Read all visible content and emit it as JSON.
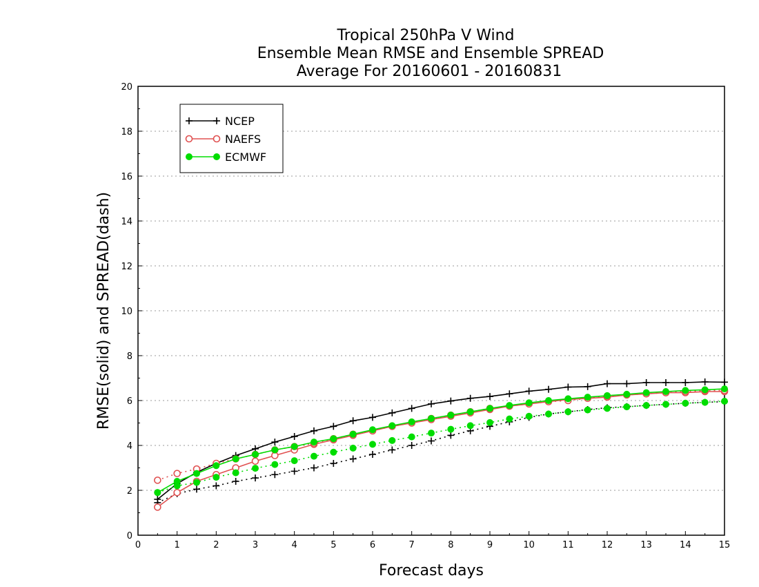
{
  "chart_data": {
    "type": "line",
    "title_lines": [
      "Tropical 250hPa V Wind",
      "Ensemble Mean RMSE and Ensemble SPREAD",
      "Average For 20160601 - 20160831"
    ],
    "xlabel": "Forecast days",
    "ylabel": "RMSE(solid) and SPREAD(dash)",
    "xlim": [
      0,
      15
    ],
    "ylim": [
      0,
      20
    ],
    "xticks": [
      "0",
      "1",
      "2",
      "3",
      "4",
      "5",
      "6",
      "7",
      "8",
      "9",
      "10",
      "11",
      "12",
      "13",
      "14",
      "15"
    ],
    "yticks": [
      "0",
      "2",
      "4",
      "6",
      "8",
      "10",
      "12",
      "14",
      "16",
      "18",
      "20"
    ],
    "grid": true,
    "legend_position": "top-left",
    "x": [
      0.5,
      1.0,
      1.5,
      2.0,
      2.5,
      3.0,
      3.5,
      4.0,
      4.5,
      5.0,
      5.5,
      6.0,
      6.5,
      7.0,
      7.5,
      8.0,
      8.5,
      9.0,
      9.5,
      10.0,
      10.5,
      11.0,
      11.5,
      12.0,
      12.5,
      13.0,
      13.5,
      14.0,
      14.5,
      15.0
    ],
    "series": [
      {
        "name": "NCEP",
        "color": "#000000",
        "marker": "plus",
        "rmse": [
          1.6,
          2.3,
          2.8,
          3.2,
          3.55,
          3.85,
          4.15,
          4.4,
          4.65,
          4.85,
          5.1,
          5.25,
          5.45,
          5.65,
          5.85,
          5.98,
          6.1,
          6.18,
          6.3,
          6.42,
          6.5,
          6.6,
          6.62,
          6.75,
          6.75,
          6.8,
          6.8,
          6.8,
          6.83,
          6.82
        ],
        "spread": [
          1.45,
          1.85,
          2.05,
          2.2,
          2.4,
          2.55,
          2.7,
          2.85,
          3.0,
          3.2,
          3.4,
          3.6,
          3.8,
          4.0,
          4.2,
          4.45,
          4.65,
          4.85,
          5.05,
          5.25,
          5.4,
          5.5,
          5.6,
          5.68,
          5.73,
          5.78,
          5.83,
          5.88,
          5.92,
          5.95
        ]
      },
      {
        "name": "NAEFS",
        "color": "#e05050",
        "marker": "open-circle",
        "rmse": [
          1.25,
          1.9,
          2.4,
          2.7,
          3.0,
          3.3,
          3.55,
          3.8,
          4.05,
          4.25,
          4.45,
          4.65,
          4.85,
          5.0,
          5.15,
          5.3,
          5.45,
          5.6,
          5.75,
          5.85,
          5.95,
          6.05,
          6.1,
          6.15,
          6.25,
          6.3,
          6.35,
          6.35,
          6.4,
          6.4
        ],
        "spread": [
          2.45,
          2.75,
          2.95,
          3.2,
          3.4,
          3.6,
          3.8,
          3.95,
          4.1,
          4.3,
          4.5,
          4.65,
          4.85,
          5.0,
          5.2,
          5.35,
          5.5,
          5.65,
          5.75,
          5.85,
          5.95,
          6.0,
          6.1,
          6.2,
          6.25,
          6.3,
          6.35,
          6.4,
          6.45,
          6.45
        ]
      },
      {
        "name": "ECMWF",
        "color": "#00dd00",
        "marker": "filled-circle",
        "rmse": [
          1.9,
          2.4,
          2.75,
          3.1,
          3.4,
          3.6,
          3.8,
          3.95,
          4.15,
          4.3,
          4.5,
          4.7,
          4.88,
          5.05,
          5.2,
          5.35,
          5.5,
          5.65,
          5.78,
          5.9,
          6.0,
          6.08,
          6.15,
          6.22,
          6.28,
          6.35,
          6.4,
          6.45,
          6.48,
          6.52
        ],
        "spread": [
          1.9,
          2.2,
          2.35,
          2.58,
          2.78,
          2.98,
          3.15,
          3.32,
          3.52,
          3.7,
          3.88,
          4.05,
          4.22,
          4.38,
          4.55,
          4.72,
          4.88,
          5.02,
          5.18,
          5.3,
          5.4,
          5.5,
          5.58,
          5.65,
          5.72,
          5.78,
          5.83,
          5.88,
          5.92,
          5.97
        ]
      }
    ]
  }
}
